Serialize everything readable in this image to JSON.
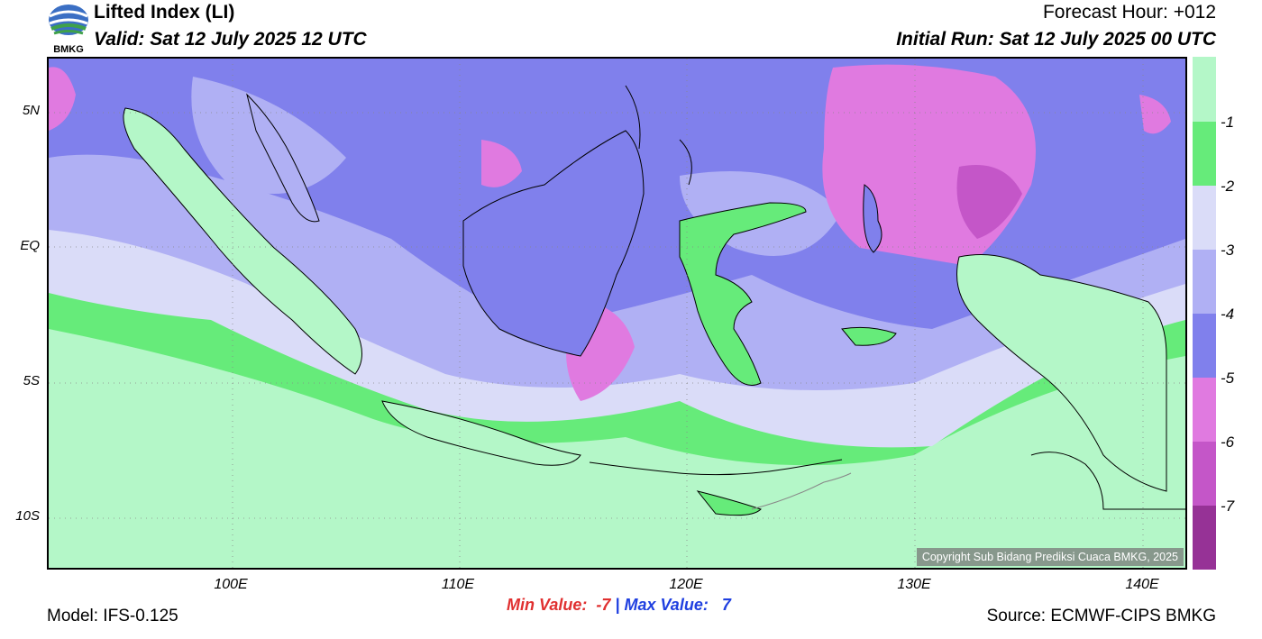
{
  "header": {
    "logo_text": "BMKG",
    "title": "Lifted Index (LI)",
    "valid": "Valid: Sat 12 July 2025 12 UTC",
    "forecast_hour": "Forecast Hour: +012",
    "initial_run": "Initial Run: Sat 12 July 2025 00 UTC"
  },
  "map": {
    "copyright": "Copyright Sub Bidang Prediksi Cuaca BMKG, 2025",
    "lat_labels": [
      "5N",
      "EQ",
      "5S",
      "10S"
    ],
    "lon_labels": [
      "100E",
      "110E",
      "120E",
      "130E",
      "140E"
    ]
  },
  "legend": {
    "labels": [
      "-1",
      "-2",
      "-3",
      "-4",
      "-5",
      "-6",
      "-7"
    ],
    "colors": [
      "#b4f7c8",
      "#66eb7a",
      "#dadcf8",
      "#b0b0f4",
      "#8080ec",
      "#e07ae0",
      "#c456c8",
      "#963296"
    ]
  },
  "stats": {
    "min_label": "Min Value:",
    "min_value": "-7",
    "separator": "|",
    "max_label": "Max Value:",
    "max_value": "7"
  },
  "footer": {
    "model": "Model: IFS-0.125",
    "source": "Source: ECMWF-CIPS BMKG"
  }
}
